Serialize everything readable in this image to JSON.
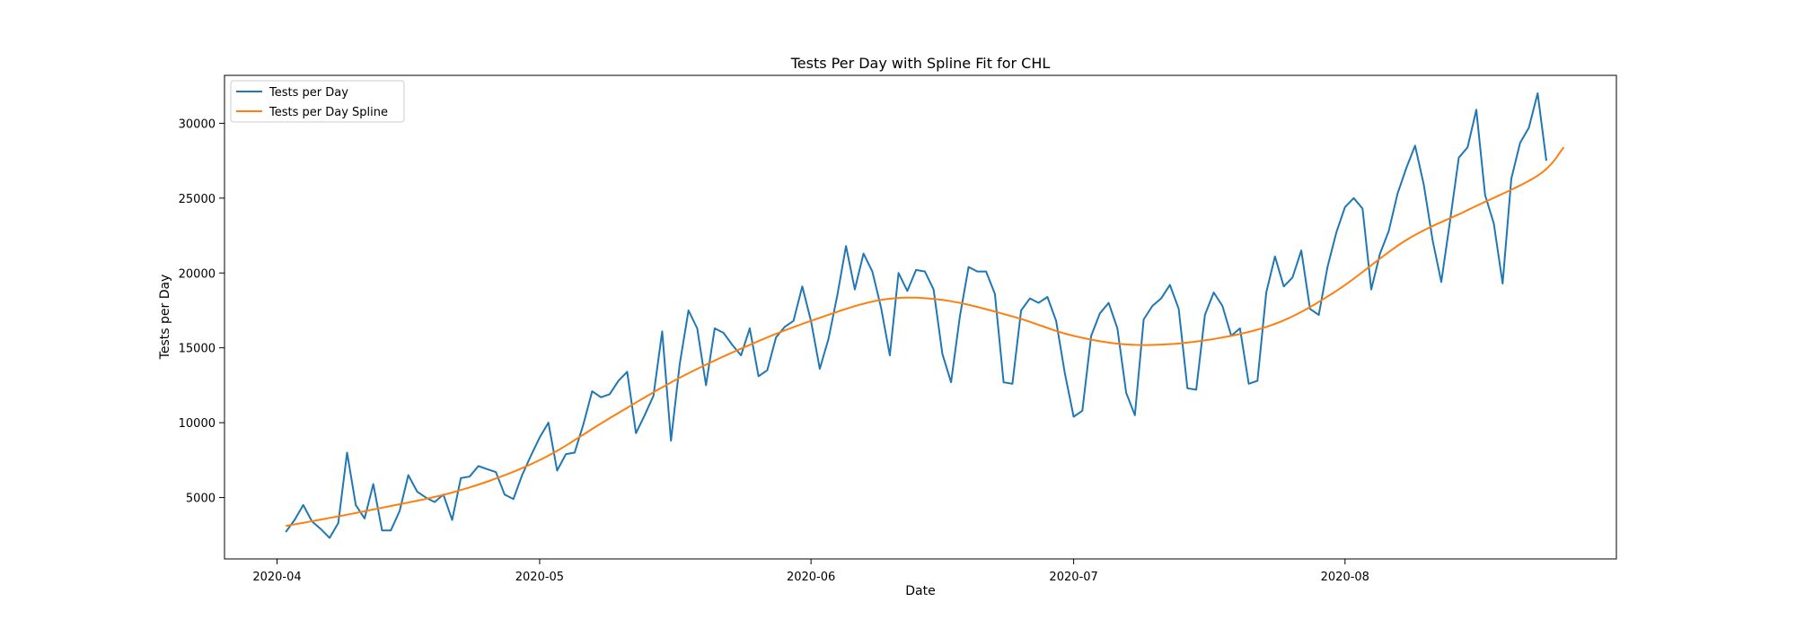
{
  "chart_data": {
    "type": "line",
    "title": "Tests Per Day with Spline Fit for CHL",
    "xlabel": "Date",
    "ylabel": "Tests per Day",
    "x_start": "2020-04-02",
    "x_end": "2020-08-25",
    "xlim": [
      "2020-03-26",
      "2020-09-01"
    ],
    "ylim": [
      900,
      33200
    ],
    "x_ticks": [
      "2020-04",
      "2020-05",
      "2020-06",
      "2020-07",
      "2020-08"
    ],
    "y_ticks": [
      5000,
      10000,
      15000,
      20000,
      25000,
      30000
    ],
    "grid": false,
    "legend_position": "upper-left",
    "series": [
      {
        "name": "Tests per Day",
        "color": "#1f77b4",
        "values": [
          2700,
          3500,
          4500,
          3400,
          2900,
          2300,
          3300,
          8000,
          4500,
          3600,
          5900,
          2800,
          2800,
          4100,
          6500,
          5400,
          5000,
          4700,
          5200,
          3500,
          6300,
          6400,
          7100,
          6900,
          6700,
          5200,
          4900,
          6500,
          7800,
          9000,
          10000,
          6800,
          7900,
          8000,
          9900,
          12100,
          11700,
          11900,
          12800,
          13400,
          9300,
          10500,
          11800,
          16100,
          8800,
          13900,
          17500,
          16300,
          12500,
          16300,
          16000,
          15200,
          14500,
          16300,
          13100,
          13500,
          15700,
          16400,
          16800,
          19100,
          16800,
          13600,
          15600,
          18500,
          21800,
          18900,
          21300,
          20100,
          17700,
          14500,
          20000,
          18800,
          20200,
          20100,
          18900,
          14600,
          12700,
          17100,
          20400,
          20100,
          20100,
          18600,
          12700,
          12600,
          17500,
          18300,
          18000,
          18400,
          16800,
          13300,
          10400,
          10800,
          15800,
          17300,
          18000,
          16300,
          12000,
          10500,
          16900,
          17800,
          18300,
          19200,
          17600,
          12300,
          12200,
          17200,
          18700,
          17800,
          15800,
          16300,
          12600,
          12800,
          18700,
          21100,
          19100,
          19700,
          21500,
          17600,
          17200,
          20400,
          22700,
          24400,
          25000,
          24300,
          18900,
          21300,
          22800,
          25300,
          27000,
          28500,
          25900,
          22200,
          19400,
          23500,
          27700,
          28400,
          30900,
          25200,
          23300,
          19300,
          26300,
          28700,
          29700,
          32000,
          27500
        ]
      },
      {
        "name": "Tests per Day Spline",
        "color": "#ff7f0e",
        "knots": [
          [
            0,
            3100
          ],
          [
            10,
            4200
          ],
          [
            20,
            5500
          ],
          [
            29,
            7500
          ],
          [
            37,
            10300
          ],
          [
            45,
            13000
          ],
          [
            53,
            15200
          ],
          [
            60,
            16800
          ],
          [
            68,
            18200
          ],
          [
            75,
            18200
          ],
          [
            83,
            17100
          ],
          [
            90,
            15800
          ],
          [
            97,
            15200
          ],
          [
            105,
            15500
          ],
          [
            113,
            16600
          ],
          [
            120,
            18800
          ],
          [
            128,
            22200
          ],
          [
            135,
            24200
          ],
          [
            143,
            26500
          ],
          [
            146,
            28400
          ]
        ]
      }
    ]
  }
}
